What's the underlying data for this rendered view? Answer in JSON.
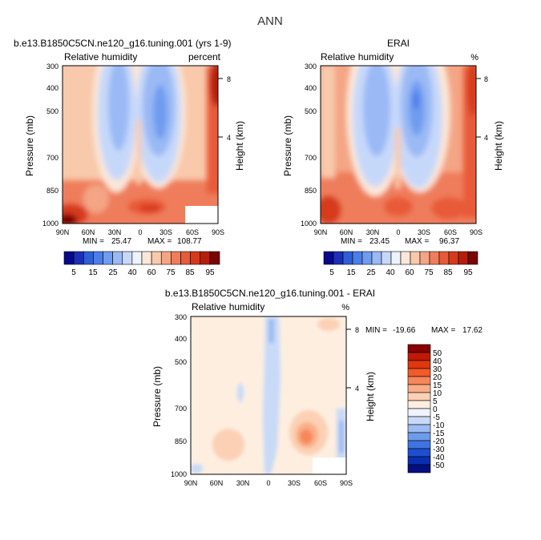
{
  "page_title": "ANN",
  "chart_data": [
    {
      "type": "heatmap",
      "id": "model",
      "title": "b.e13.B1850C5CN.ne120_g16.tuning.001 (yrs 1-9)",
      "subtitle_left": "Relative humidity",
      "subtitle_right": "percent",
      "ylabel": "Pressure (mb)",
      "ylabel_right": "Height (km)",
      "xticks": [
        "90N",
        "60N",
        "30N",
        "0",
        "30S",
        "60S",
        "90S"
      ],
      "yticks": [
        "300",
        "400",
        "500",
        "700",
        "850",
        "1000"
      ],
      "height_ticks": [
        "8",
        "4"
      ],
      "min_label": "MIN =",
      "min_value": "25.47",
      "max_label": "MAX =",
      "max_value": "108.77",
      "colorbar": {
        "orientation": "horizontal",
        "labels": [
          "5",
          "15",
          "25",
          "40",
          "60",
          "75",
          "85",
          "95"
        ],
        "colors": [
          "#08088a",
          "#1c2fb6",
          "#2f5fd6",
          "#4a7ee8",
          "#6f9cf0",
          "#9ab9f5",
          "#c6d8fa",
          "#edf3fd",
          "#fbe7d8",
          "#f8c9ab",
          "#f4a585",
          "#ef7d5c",
          "#e85a38",
          "#d63a1a",
          "#b51f0a",
          "#7a0505"
        ]
      }
    },
    {
      "type": "heatmap",
      "id": "erai",
      "title": "ERAI",
      "subtitle_left": "Relative humidity",
      "subtitle_right": "%",
      "ylabel": "Pressure (mb)",
      "ylabel_right": "Height (km)",
      "xticks": [
        "90N",
        "60N",
        "30N",
        "0",
        "30S",
        "60S",
        "90S"
      ],
      "yticks": [
        "300",
        "400",
        "500",
        "700",
        "850",
        "1000"
      ],
      "height_ticks": [
        "8",
        "4"
      ],
      "min_label": "MIN =",
      "min_value": "23.45",
      "max_label": "MAX =",
      "max_value": "96.37",
      "colorbar": {
        "orientation": "horizontal",
        "labels": [
          "5",
          "15",
          "25",
          "40",
          "60",
          "75",
          "85",
          "95"
        ],
        "colors": [
          "#08088a",
          "#1c2fb6",
          "#2f5fd6",
          "#4a7ee8",
          "#6f9cf0",
          "#9ab9f5",
          "#c6d8fa",
          "#edf3fd",
          "#fbe7d8",
          "#f8c9ab",
          "#f4a585",
          "#ef7d5c",
          "#e85a38",
          "#d63a1a",
          "#b51f0a",
          "#7a0505"
        ]
      }
    },
    {
      "type": "heatmap",
      "id": "diff",
      "title": "b.e13.B1850C5CN.ne120_g16.tuning.001 - ERAI",
      "subtitle_left": "Relative humidity",
      "subtitle_right": "%",
      "ylabel": "Pressure (mb)",
      "ylabel_right": "Height (km)",
      "xticks": [
        "90N",
        "60N",
        "30N",
        "0",
        "30S",
        "60S",
        "90S"
      ],
      "yticks": [
        "300",
        "400",
        "500",
        "700",
        "850",
        "1000"
      ],
      "height_ticks": [
        "8",
        "4"
      ],
      "min_label": "MIN =",
      "min_value": "-19.66",
      "max_label": "MAX =",
      "max_value": "17.62",
      "colorbar": {
        "orientation": "vertical",
        "labels": [
          "50",
          "40",
          "30",
          "20",
          "15",
          "10",
          "5",
          "0",
          "-5",
          "-10",
          "-15",
          "-20",
          "-30",
          "-40",
          "-50"
        ],
        "colors": [
          "#8b0000",
          "#c01a05",
          "#e0380e",
          "#f25a28",
          "#f6875a",
          "#f9ae88",
          "#fcd0b4",
          "#fdeee0",
          "#eef3fd",
          "#c8daf8",
          "#9cbcf2",
          "#6e9cec",
          "#3f74e0",
          "#1d4fd0",
          "#0a2eb0",
          "#050f80"
        ]
      }
    }
  ]
}
